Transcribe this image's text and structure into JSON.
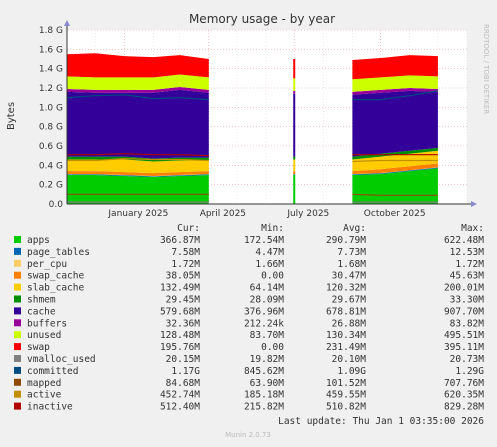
{
  "chart_data": {
    "type": "area",
    "title": "Memory usage - by year",
    "ylabel": "Bytes",
    "watermark": "RRDTOOL / TOBI OETIKER",
    "ylim": [
      0,
      1.8
    ],
    "ytick_labels": [
      "0.0",
      "0.2 G",
      "0.4 G",
      "0.6 G",
      "0.8 G",
      "1.0 G",
      "1.2 G",
      "1.4 G",
      "1.6 G",
      "1.8 G"
    ],
    "xtick_labels": [
      "January 2025",
      "April 2025",
      "July 2025",
      "October 2025"
    ],
    "grid": true,
    "x": [
      "2024-11",
      "2024-12",
      "2025-01",
      "2025-02",
      "2025-03",
      "2025-04",
      "2025-05",
      "2025-06",
      "2025-07",
      "2025-08",
      "2025-09",
      "2025-10",
      "2025-11",
      "2025-12"
    ],
    "stack_series": [
      {
        "name": "apps",
        "color": "#00cc00",
        "values": [
          0.3,
          0.3,
          0.29,
          0.28,
          0.29,
          0.3,
          null,
          null,
          0.3,
          null,
          0.3,
          0.31,
          0.34,
          0.37
        ]
      },
      {
        "name": "page_tables",
        "color": "#0066b3",
        "values": [
          0.008,
          0.008,
          0.008,
          0.008,
          0.008,
          0.008,
          null,
          null,
          0.008,
          null,
          0.008,
          0.008,
          0.008,
          0.008
        ]
      },
      {
        "name": "per_cpu",
        "color": "#ffcc66",
        "values": [
          0.002,
          0.002,
          0.002,
          0.002,
          0.002,
          0.002,
          null,
          null,
          0.002,
          null,
          0.002,
          0.002,
          0.002,
          0.002
        ]
      },
      {
        "name": "swap_cache",
        "color": "#ff8000",
        "values": [
          0.03,
          0.03,
          0.03,
          0.03,
          0.03,
          0.03,
          null,
          null,
          0.03,
          null,
          0.03,
          0.04,
          0.04,
          0.04
        ]
      },
      {
        "name": "slab_cache",
        "color": "#ffcc00",
        "values": [
          0.12,
          0.12,
          0.13,
          0.12,
          0.12,
          0.11,
          null,
          null,
          0.12,
          null,
          0.12,
          0.13,
          0.13,
          0.13
        ]
      },
      {
        "name": "shmem",
        "color": "#008f00",
        "values": [
          0.03,
          0.03,
          0.03,
          0.03,
          0.03,
          0.03,
          null,
          null,
          0.03,
          null,
          0.03,
          0.03,
          0.03,
          0.03
        ]
      },
      {
        "name": "cache",
        "color": "#330099",
        "values": [
          0.67,
          0.66,
          0.66,
          0.68,
          0.7,
          0.67,
          null,
          null,
          0.65,
          null,
          0.64,
          0.63,
          0.62,
          0.58
        ]
      },
      {
        "name": "buffers",
        "color": "#990099",
        "values": [
          0.03,
          0.03,
          0.03,
          0.03,
          0.03,
          0.03,
          null,
          null,
          0.03,
          null,
          0.03,
          0.03,
          0.03,
          0.03
        ]
      },
      {
        "name": "unused",
        "color": "#ccff00",
        "values": [
          0.13,
          0.13,
          0.13,
          0.13,
          0.13,
          0.13,
          null,
          null,
          0.13,
          null,
          0.13,
          0.13,
          0.13,
          0.13
        ]
      },
      {
        "name": "swap",
        "color": "#ff0000",
        "values": [
          0.23,
          0.25,
          0.22,
          0.21,
          0.2,
          0.19,
          null,
          null,
          0.2,
          null,
          0.2,
          0.2,
          0.21,
          0.21
        ]
      }
    ],
    "line_series": [
      {
        "name": "vmalloc_used",
        "color": "#808080",
        "values": [
          0.02,
          0.02,
          0.02,
          0.02,
          0.02,
          0.02,
          null,
          null,
          0.02,
          null,
          0.02,
          0.02,
          0.02,
          0.02
        ]
      },
      {
        "name": "committed",
        "color": "#004c80",
        "values": [
          1.1,
          1.12,
          1.13,
          1.09,
          1.1,
          1.08,
          null,
          null,
          1.05,
          null,
          1.08,
          1.08,
          1.12,
          1.17
        ]
      },
      {
        "name": "mapped",
        "color": "#8f4c00",
        "values": [
          0.1,
          0.1,
          0.1,
          0.1,
          0.1,
          0.1,
          null,
          null,
          0.1,
          null,
          0.1,
          0.09,
          0.09,
          0.09
        ]
      },
      {
        "name": "active",
        "color": "#c09000",
        "values": [
          0.45,
          0.45,
          0.47,
          0.46,
          0.46,
          0.45,
          null,
          null,
          0.45,
          null,
          0.44,
          0.45,
          0.45,
          0.45
        ]
      },
      {
        "name": "inactive",
        "color": "#b30000",
        "values": [
          0.51,
          0.51,
          0.52,
          0.51,
          0.51,
          0.5,
          null,
          null,
          0.5,
          null,
          0.51,
          0.51,
          0.51,
          0.51
        ]
      }
    ],
    "legend": {
      "headers": [
        "Cur:",
        "Min:",
        "Avg:",
        "Max:"
      ],
      "rows": [
        {
          "name": "apps",
          "color": "#00cc00",
          "cur": "366.87M",
          "min": "172.54M",
          "avg": "290.79M",
          "max": "622.48M"
        },
        {
          "name": "page_tables",
          "color": "#0066b3",
          "cur": "7.58M",
          "min": "4.47M",
          "avg": "7.73M",
          "max": "12.53M"
        },
        {
          "name": "per_cpu",
          "color": "#ffcc66",
          "cur": "1.72M",
          "min": "1.66M",
          "avg": "1.68M",
          "max": "1.72M"
        },
        {
          "name": "swap_cache",
          "color": "#ff8000",
          "cur": "38.05M",
          "min": "0.00",
          "avg": "30.47M",
          "max": "45.63M"
        },
        {
          "name": "slab_cache",
          "color": "#ffcc00",
          "cur": "132.49M",
          "min": "64.14M",
          "avg": "120.32M",
          "max": "200.01M"
        },
        {
          "name": "shmem",
          "color": "#008f00",
          "cur": "29.45M",
          "min": "28.09M",
          "avg": "29.67M",
          "max": "33.30M"
        },
        {
          "name": "cache",
          "color": "#330099",
          "cur": "579.68M",
          "min": "376.96M",
          "avg": "678.81M",
          "max": "907.70M"
        },
        {
          "name": "buffers",
          "color": "#990099",
          "cur": "32.36M",
          "min": "212.24k",
          "avg": "26.88M",
          "max": "83.82M"
        },
        {
          "name": "unused",
          "color": "#ccff00",
          "cur": "128.48M",
          "min": "83.70M",
          "avg": "130.34M",
          "max": "495.51M"
        },
        {
          "name": "swap",
          "color": "#ff0000",
          "cur": "195.76M",
          "min": "0.00",
          "avg": "231.49M",
          "max": "395.11M"
        },
        {
          "name": "vmalloc_used",
          "color": "#808080",
          "cur": "20.15M",
          "min": "19.82M",
          "avg": "20.10M",
          "max": "20.73M"
        },
        {
          "name": "committed",
          "color": "#004c80",
          "cur": "1.17G",
          "min": "845.62M",
          "avg": "1.09G",
          "max": "1.29G"
        },
        {
          "name": "mapped",
          "color": "#8f4c00",
          "cur": "84.68M",
          "min": "63.90M",
          "avg": "101.52M",
          "max": "707.76M"
        },
        {
          "name": "active",
          "color": "#c09000",
          "cur": "452.74M",
          "min": "185.18M",
          "avg": "459.55M",
          "max": "620.35M"
        },
        {
          "name": "inactive",
          "color": "#b30000",
          "cur": "512.40M",
          "min": "215.82M",
          "avg": "510.82M",
          "max": "829.28M"
        }
      ]
    },
    "last_update": "Last update:  Thu Jan  1 03:35:00 2026",
    "footer": "Munin 2.0.73"
  }
}
